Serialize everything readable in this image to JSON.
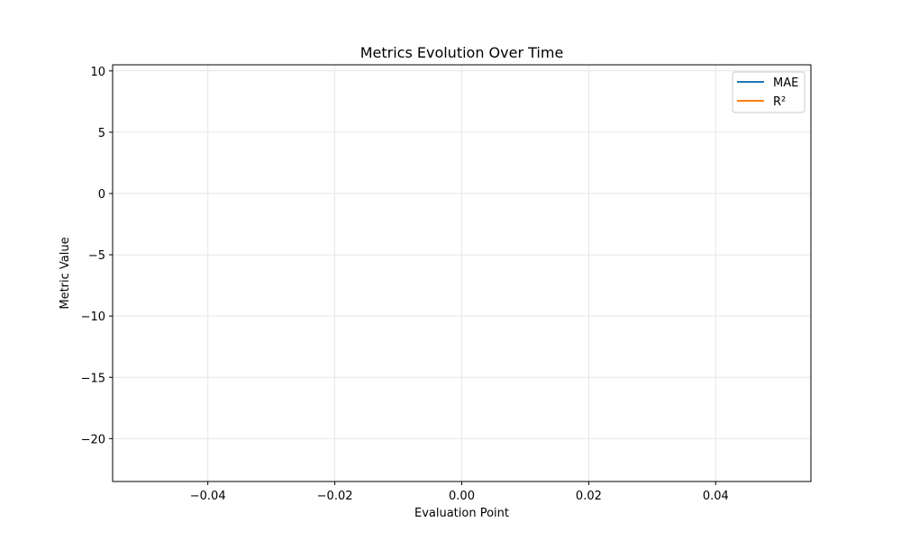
{
  "chart_data": {
    "type": "line",
    "title": "Metrics Evolution Over Time",
    "xlabel": "Evaluation Point",
    "ylabel": "Metric Value",
    "xlim": [
      -0.055,
      0.055
    ],
    "ylim": [
      -23.5,
      10.5
    ],
    "xticks": [
      -0.04,
      -0.02,
      0.0,
      0.02,
      0.04
    ],
    "xtick_labels": [
      "−0.04",
      "−0.02",
      "0.00",
      "0.02",
      "0.04"
    ],
    "yticks": [
      10,
      5,
      0,
      -5,
      -10,
      -15,
      -20
    ],
    "ytick_labels": [
      "10",
      "5",
      "0",
      "−5",
      "−10",
      "−15",
      "−20"
    ],
    "grid": true,
    "legend_position": "top-right",
    "series": [
      {
        "name": "MAE",
        "color": "#1f77b4",
        "x": [],
        "y": []
      },
      {
        "name": "R²",
        "color": "#ff7f0e",
        "x": [],
        "y": []
      }
    ]
  }
}
